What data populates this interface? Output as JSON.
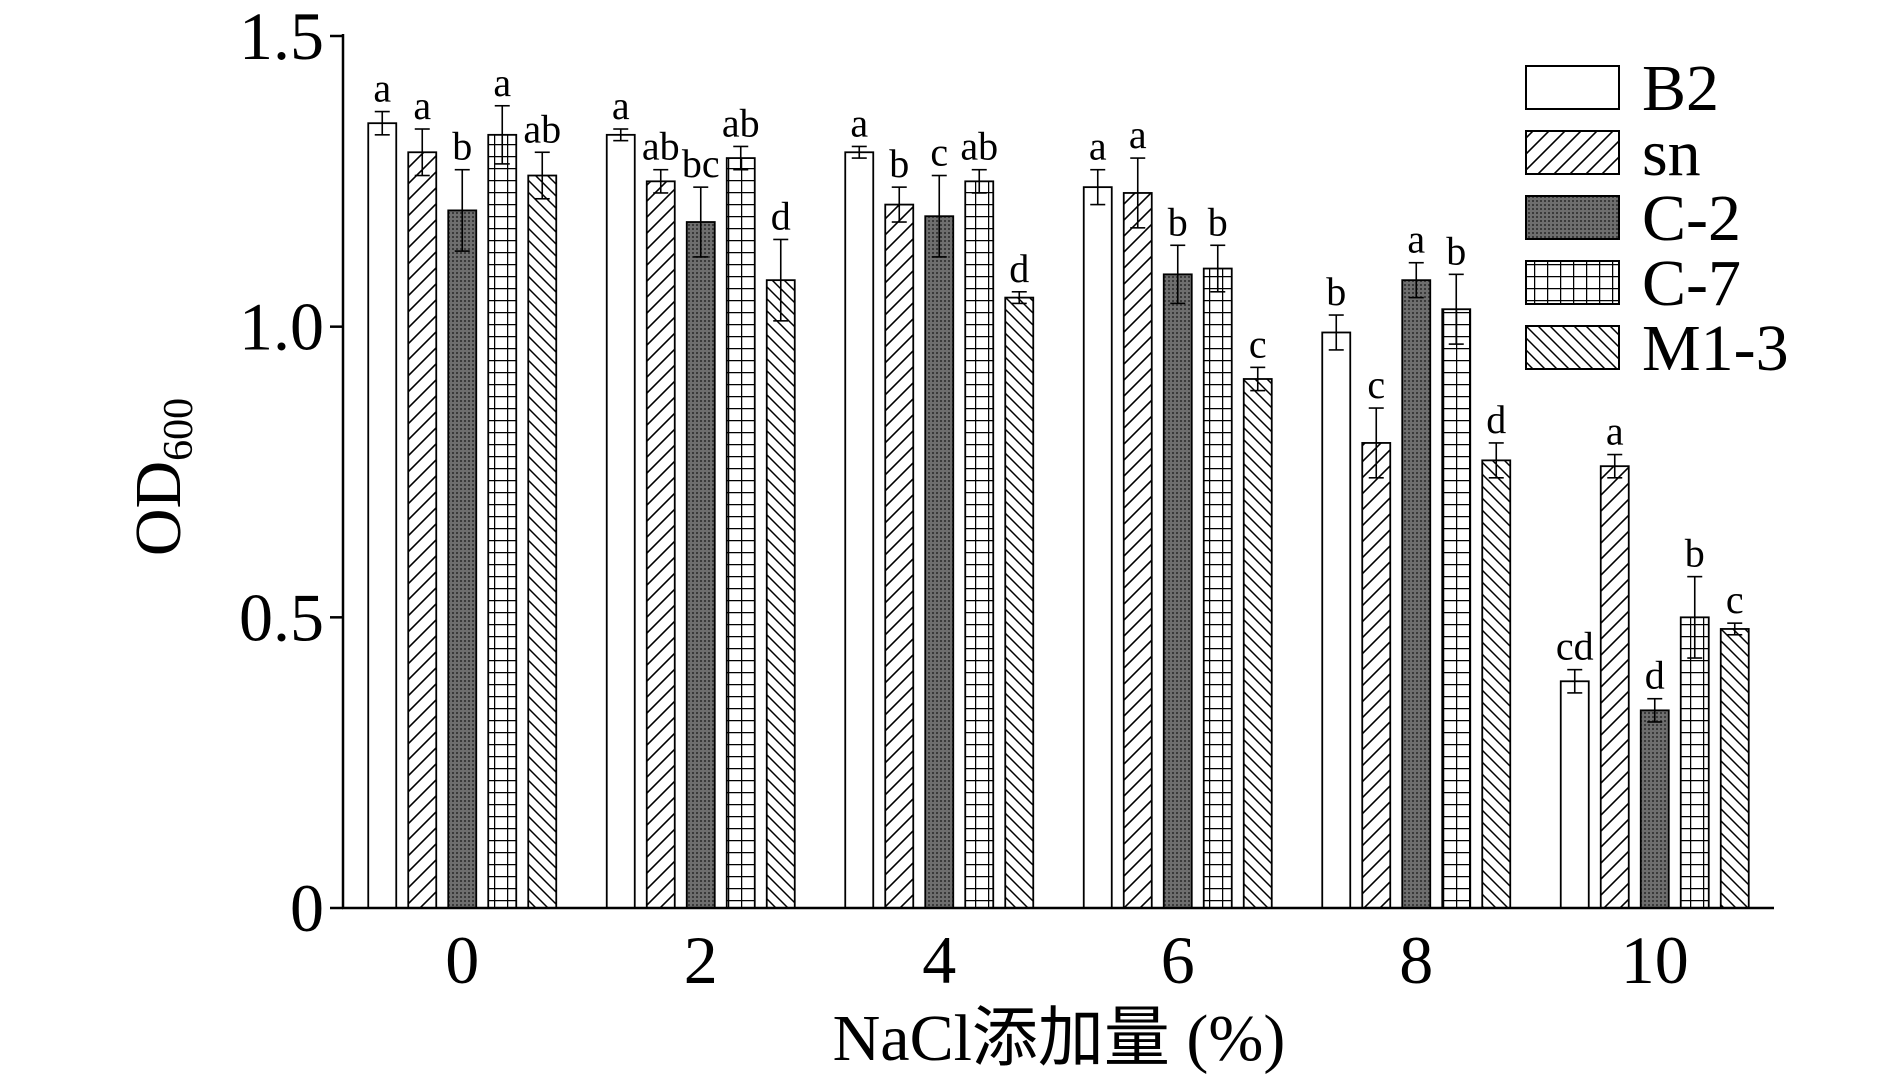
{
  "chart_data": {
    "type": "bar",
    "xlabel": "NaCl添加量 (%)",
    "ylabel": "OD",
    "ylabel_sub": "600",
    "categories": [
      "0",
      "2",
      "4",
      "6",
      "8",
      "10"
    ],
    "yticks": [
      "0",
      "0.5",
      "1.0",
      "1.5"
    ],
    "ylim": [
      0,
      1.5
    ],
    "grid": false,
    "legend": "top-right",
    "series": [
      {
        "name": "B2",
        "fill": "#ffffff",
        "values": [
          1.35,
          1.33,
          1.3,
          1.24,
          0.99,
          0.39
        ],
        "errors": [
          0.02,
          0.01,
          0.01,
          0.03,
          0.03,
          0.02
        ],
        "letters": [
          "a",
          "a",
          "a",
          "a",
          "b",
          "cd"
        ]
      },
      {
        "name": "sn",
        "fill": "#ffffff",
        "values": [
          1.3,
          1.25,
          1.21,
          1.23,
          0.8,
          0.76
        ],
        "errors": [
          0.04,
          0.02,
          0.03,
          0.06,
          0.06,
          0.02
        ],
        "letters": [
          "a",
          "ab",
          "b",
          "a",
          "c",
          "a"
        ]
      },
      {
        "name": "C-2",
        "fill": "#6e6e6e",
        "values": [
          1.2,
          1.18,
          1.19,
          1.09,
          1.08,
          0.34
        ],
        "errors": [
          0.07,
          0.06,
          0.07,
          0.05,
          0.03,
          0.02
        ],
        "letters": [
          "b",
          "bc",
          "c",
          "b",
          "a",
          "d"
        ]
      },
      {
        "name": "C-7",
        "fill": "#ffffff",
        "values": [
          1.33,
          1.29,
          1.25,
          1.1,
          1.03,
          0.5
        ],
        "errors": [
          0.05,
          0.02,
          0.02,
          0.04,
          0.06,
          0.07
        ],
        "letters": [
          "a",
          "ab",
          "ab",
          "b",
          "b",
          "b"
        ]
      },
      {
        "name": "M1-3",
        "fill": "#ffffff",
        "values": [
          1.26,
          1.08,
          1.05,
          0.91,
          0.77,
          0.48
        ],
        "errors": [
          0.04,
          0.07,
          0.01,
          0.02,
          0.03,
          0.01
        ],
        "letters": [
          "ab",
          "d",
          "d",
          "c",
          "d",
          "c"
        ]
      }
    ]
  }
}
